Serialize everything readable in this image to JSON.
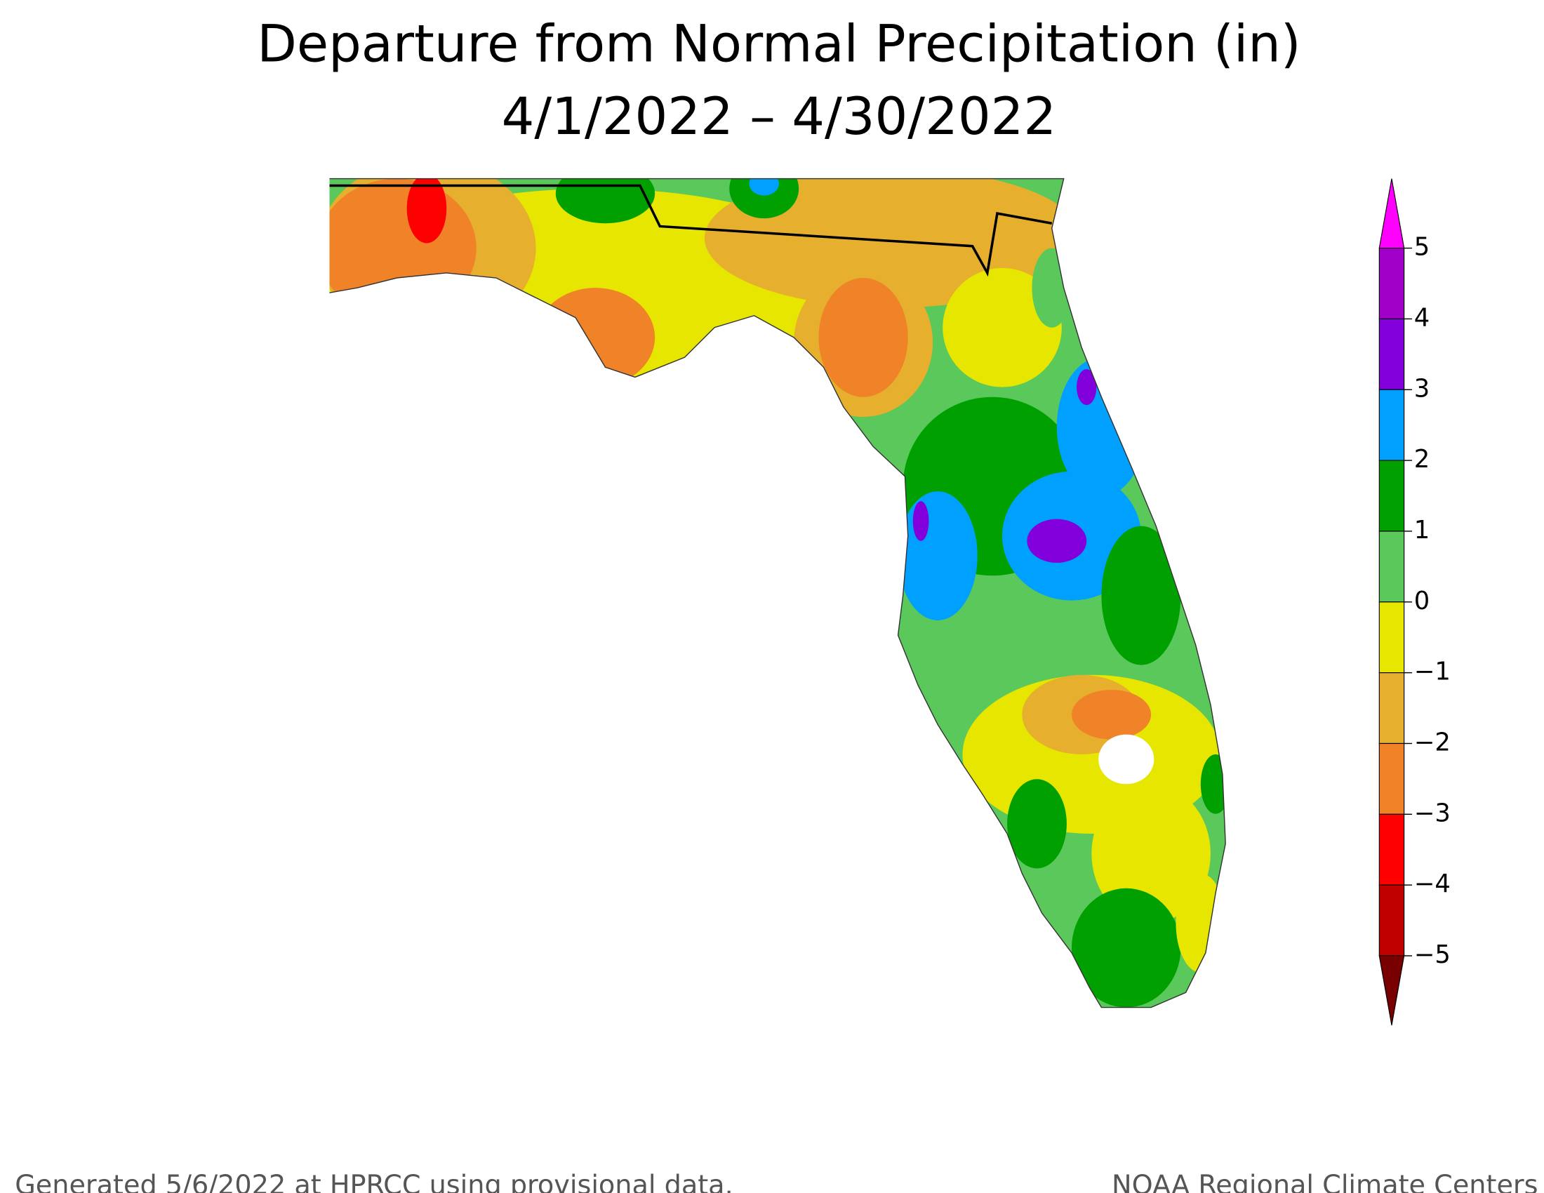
{
  "title": "Departure from Normal Precipitation (in)",
  "subtitle": "4/1/2022 – 4/30/2022",
  "legend": {
    "colors": [
      "#ff00ff",
      "#a000c8",
      "#8200dc",
      "#00a0ff",
      "#00a000",
      "#5ac85a",
      "#e6e600",
      "#e6af2d",
      "#f08228",
      "#ff0000",
      "#c00000",
      "#780000"
    ],
    "ticks": [
      5,
      4,
      3,
      2,
      1,
      0,
      {
        "value": -1,
        "label": "−1"
      },
      {
        "value": -2,
        "label": "−2"
      },
      {
        "value": -3,
        "label": "−3"
      },
      {
        "value": -4,
        "label": "−4"
      },
      {
        "value": -5,
        "label": "−5"
      }
    ]
  },
  "footer_left": "Generated 5/6/2022 at HPRCC using provisional data.",
  "footer_right": "NOAA Regional Climate Centers"
}
